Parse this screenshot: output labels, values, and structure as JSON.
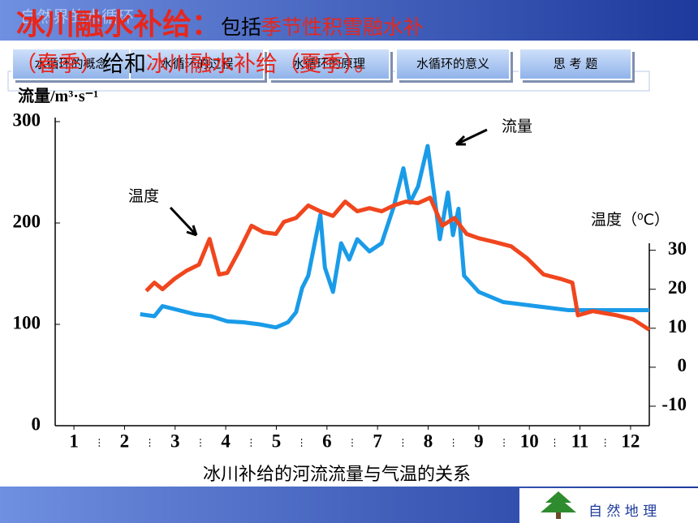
{
  "header": {
    "faint_title": "自然界的水循环",
    "line1": [
      {
        "text": "冰川融水补给：",
        "color": "#e8261c"
      },
      {
        "text": "包括",
        "color": "#000000"
      },
      {
        "text": "季节性积雪融水补",
        "color": "#e8261c"
      }
    ],
    "line2": [
      {
        "text": "（春季）",
        "color": "#e8261c"
      },
      {
        "text": "给和",
        "color": "#000000"
      },
      {
        "text": "冰川融水补给（夏季）。",
        "color": "#e8261c"
      }
    ]
  },
  "nav": [
    "水循环的概念",
    "水循环的过程",
    "水循环的原理",
    "水循环的意义",
    "思 考 题"
  ],
  "chart_data": {
    "type": "line",
    "title": "冰川补给的河流流量与气温的关系",
    "y_label": "流量/m³·s⁻¹",
    "y2_label": "温度（⁰C）",
    "annotations": [
      "流量",
      "温度"
    ],
    "categories": [
      "1",
      "2",
      "3",
      "4",
      "5",
      "6",
      "7",
      "8",
      "9",
      "10",
      "11",
      "12"
    ],
    "xticks": [
      1,
      2,
      3,
      4,
      5,
      6,
      7,
      8,
      9,
      10,
      11,
      12
    ],
    "xlim": [
      0.63,
      12.37
    ],
    "ylim": [
      0,
      300
    ],
    "yticks": [
      0,
      100,
      200,
      300
    ],
    "y2lim": [
      -15,
      63
    ],
    "y2ticks": [
      30,
      20,
      10,
      0,
      -10
    ],
    "series": [
      {
        "name": "流量",
        "color": "#1a9be8",
        "axis": "y",
        "x": [
          2.31,
          2.59,
          2.75,
          3.07,
          3.39,
          3.71,
          4.03,
          4.35,
          4.67,
          4.99,
          5.23,
          5.39,
          5.51,
          5.63,
          5.79,
          5.87,
          5.96,
          6.12,
          6.28,
          6.44,
          6.6,
          6.84,
          7.08,
          7.32,
          7.51,
          7.64,
          7.8,
          7.99,
          8.12,
          8.23,
          8.39,
          8.49,
          8.6,
          8.71,
          9.0,
          9.48,
          10.12,
          10.77,
          11.41,
          12.05,
          12.37
        ],
        "values": [
          110,
          108,
          118,
          114,
          110,
          108,
          103,
          102,
          100,
          97,
          102,
          112,
          136,
          148,
          188,
          208,
          156,
          132,
          180,
          164,
          184,
          172,
          180,
          216,
          254,
          220,
          236,
          276,
          228,
          184,
          230,
          188,
          214,
          148,
          132,
          122,
          118,
          114,
          114,
          114,
          114
        ]
      },
      {
        "name": "温度",
        "color": "#f0461e",
        "axis": "y2",
        "x": [
          2.43,
          2.59,
          2.75,
          2.99,
          3.23,
          3.47,
          3.68,
          3.87,
          4.03,
          4.27,
          4.51,
          4.75,
          4.99,
          5.15,
          5.39,
          5.63,
          5.87,
          6.12,
          6.36,
          6.6,
          6.84,
          7.08,
          7.32,
          7.56,
          7.8,
          8.04,
          8.28,
          8.52,
          8.76,
          9.0,
          9.32,
          9.64,
          9.96,
          10.28,
          10.61,
          10.85,
          10.96,
          11.25,
          11.73,
          12.05,
          12.37
        ],
        "values": [
          19.6,
          21.7,
          20,
          22.7,
          24.8,
          26.3,
          32.9,
          23.8,
          24.2,
          30,
          36.3,
          34.6,
          34.2,
          37.3,
          38.3,
          41.5,
          40,
          38.8,
          42.5,
          40,
          40.8,
          40,
          41.5,
          42.5,
          42.1,
          43.5,
          36.3,
          38.3,
          34.2,
          33.1,
          32.1,
          31,
          27.9,
          23.8,
          22.7,
          21.7,
          13.3,
          14.4,
          13.3,
          12.3,
          9.6
        ]
      }
    ]
  },
  "footer": {
    "brand": "自 然 地 理"
  }
}
